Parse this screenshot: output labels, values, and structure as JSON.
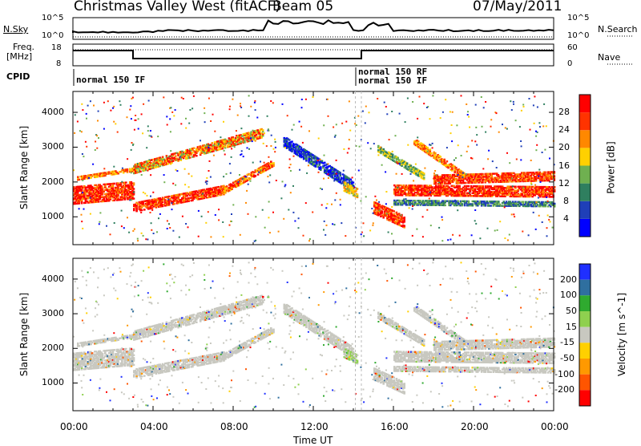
{
  "header": {
    "station": "Christmas Valley West (fitACF)",
    "beam": "Beam 05",
    "date": "07/May/2011"
  },
  "top_panels": {
    "nsky_label": "N.Sky",
    "nsky_top_tick": "10^5",
    "nsky_bottom_tick": "10^0",
    "nsearch_label": "N.Search",
    "freq_label_line1": "Freq.",
    "freq_label_line2": "[MHz]",
    "freq_ticks": [
      "18",
      "8"
    ],
    "nave_label": "Nave",
    "nave_ticks": [
      "60",
      "0"
    ],
    "cpid_label": "CPID",
    "cpid_modes": [
      "normal 150 IF",
      "normal 150 RF",
      "normal 150 IF"
    ]
  },
  "colors": {
    "power": [
      "#0000ff",
      "#1f3fb8",
      "#2f7f5f",
      "#6fb050",
      "#ffd000",
      "#ff8800",
      "#ff3300",
      "#ff0000"
    ],
    "velocity": [
      "#1f2fff",
      "#2f6f9f",
      "#2faa2f",
      "#8fd04f",
      "#c8c8c0",
      "#ffd000",
      "#ff9900",
      "#ff5500",
      "#ff0000"
    ],
    "ground_scatter": "#c8c8c0"
  },
  "chart_data": [
    {
      "type": "heatmap",
      "title": "Power",
      "xlabel": "",
      "ylabel": "Slant Range [km]",
      "x_ticks": [
        "00:00",
        "04:00",
        "08:00",
        "12:00",
        "16:00",
        "20:00",
        "00:00"
      ],
      "y_ticks": [
        "1000",
        "2000",
        "3000",
        "4000"
      ],
      "xlim": [
        0,
        24
      ],
      "ylim": [
        200,
        4600
      ],
      "colorbar_label": "Power [dB]",
      "colorbar_ticks": [
        "4",
        "8",
        "12",
        "16",
        "20",
        "24",
        "28"
      ],
      "colorbar_range": [
        0,
        32
      ]
    },
    {
      "type": "heatmap",
      "title": "Velocity",
      "xlabel": "Time UT",
      "ylabel": "Slant Range [km]",
      "x_ticks": [
        "00:00",
        "04:00",
        "08:00",
        "12:00",
        "16:00",
        "20:00",
        "00:00"
      ],
      "y_ticks": [
        "1000",
        "2000",
        "3000",
        "4000"
      ],
      "xlim": [
        0,
        24
      ],
      "ylim": [
        200,
        4600
      ],
      "colorbar_label": "Velocity [m s^-1]",
      "colorbar_ticks": [
        "200",
        "100",
        "50",
        "15",
        "-15",
        "-50",
        "-100",
        "-200"
      ]
    }
  ]
}
